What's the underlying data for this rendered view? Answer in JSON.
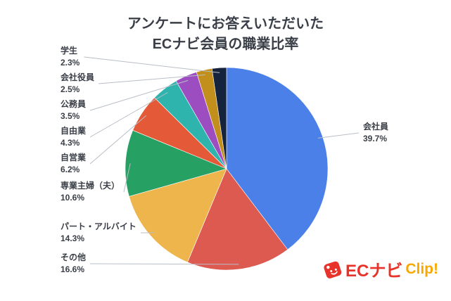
{
  "title": {
    "line1": "アンケートにお答えいただいた",
    "line2": "ECナビ会員の職業比率"
  },
  "chart_data": {
    "type": "pie",
    "title": "アンケートにお答えいただいた ECナビ会員の職業比率",
    "start_angle_deg": 0,
    "direction": "clockwise",
    "legend_position": "outside-callouts",
    "items": [
      {
        "label": "会社員",
        "value": 39.7,
        "pct_text": "39.7%",
        "color": "#4a80e8",
        "label_side": "right"
      },
      {
        "label": "その他",
        "value": 16.6,
        "pct_text": "16.6%",
        "color": "#dc5a50",
        "label_side": "left"
      },
      {
        "label": "パート・アルバイト",
        "value": 14.3,
        "pct_text": "14.3%",
        "color": "#eeb54d",
        "label_side": "left"
      },
      {
        "label": "専業主婦（夫）",
        "value": 10.6,
        "pct_text": "10.6%",
        "color": "#27a163",
        "label_side": "left"
      },
      {
        "label": "自営業",
        "value": 6.2,
        "pct_text": "6.2%",
        "color": "#e45a38",
        "label_side": "left"
      },
      {
        "label": "自由業",
        "value": 4.3,
        "pct_text": "4.3%",
        "color": "#2fb3ad",
        "label_side": "left"
      },
      {
        "label": "公務員",
        "value": 3.5,
        "pct_text": "3.5%",
        "color": "#9c4ec1",
        "label_side": "left"
      },
      {
        "label": "会社役員",
        "value": 2.5,
        "pct_text": "2.5%",
        "color": "#c28f1d",
        "label_side": "left"
      },
      {
        "label": "学生",
        "value": 2.3,
        "pct_text": "2.3%",
        "color": "#16233d",
        "label_side": "left"
      }
    ]
  },
  "logo": {
    "brand": "ECナビ",
    "suffix": "Clip!",
    "brand_color": "#e8332a",
    "suffix_color": "#f8a800"
  },
  "icons": {
    "logo_icon": "price-tag-mascot-icon"
  },
  "colors": {
    "title_text": "#3a3f47",
    "label_text": "#3a3f47",
    "leader_line": "#b9bec6",
    "background": "#ffffff"
  }
}
